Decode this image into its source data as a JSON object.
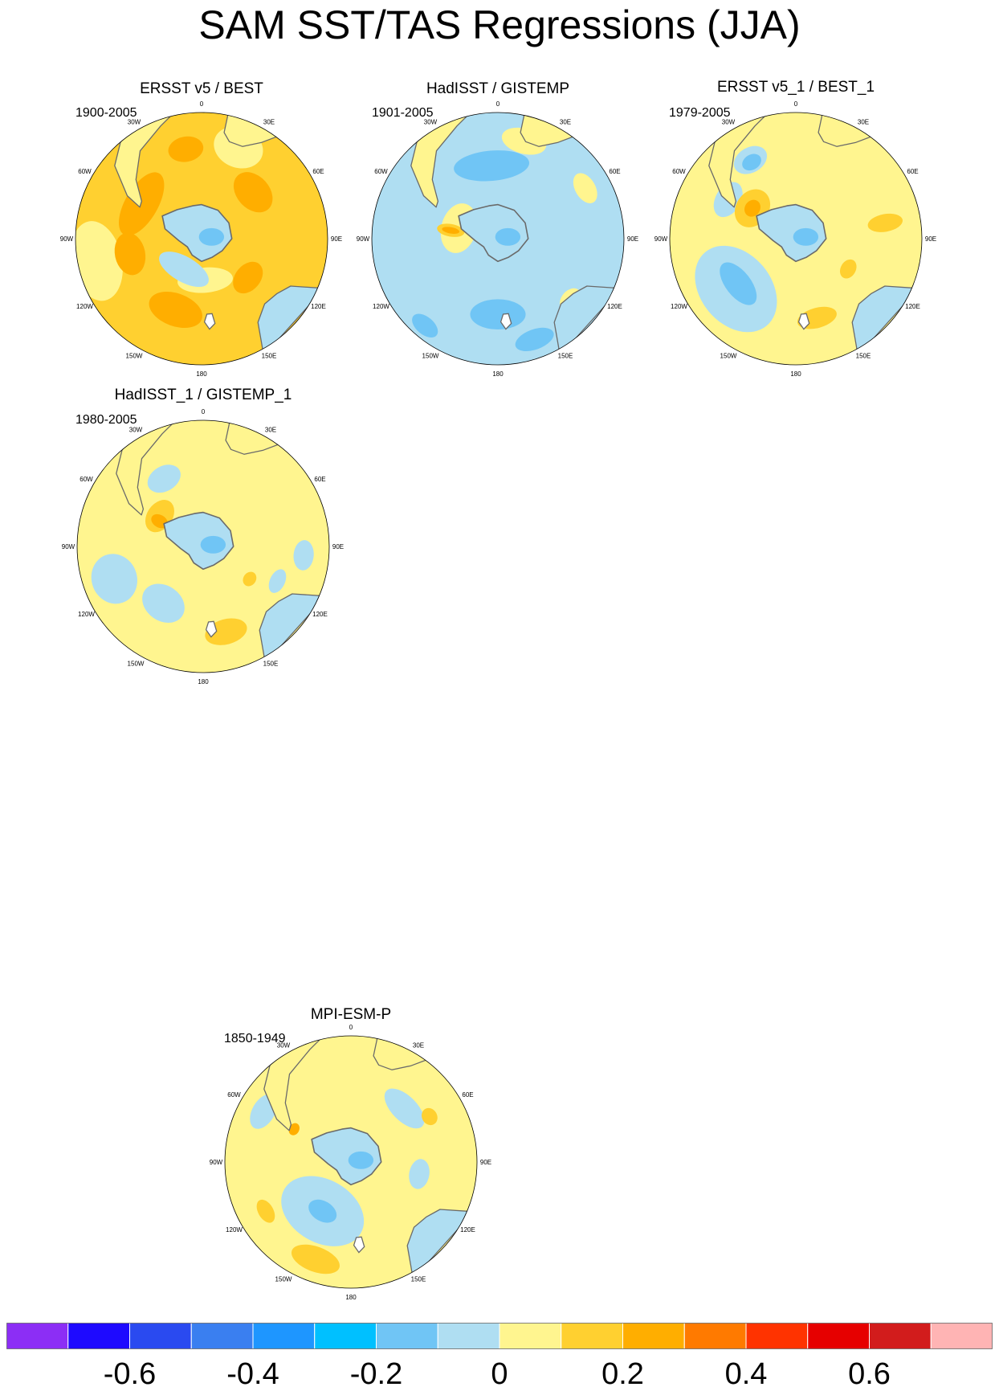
{
  "title": "SAM SST/TAS Regressions (JJA)",
  "lon_labels": [
    "0",
    "30E",
    "60E",
    "90E",
    "120E",
    "150E",
    "180",
    "150W",
    "120W",
    "90W",
    "60W",
    "30W"
  ],
  "panels": [
    {
      "title": "ERSST v5 / BEST",
      "period": "1900-2005",
      "fill": "#ffd030",
      "blobs": [
        {
          "color": "#fff58f",
          "angle": 258,
          "r": 0.85,
          "rx": 0.32,
          "ry": 0.2
        },
        {
          "color": "#fff58f",
          "angle": 22,
          "r": 0.78,
          "rx": 0.2,
          "ry": 0.16
        },
        {
          "color": "#ffae00",
          "angle": 300,
          "r": 0.55,
          "rx": 0.28,
          "ry": 0.13
        },
        {
          "color": "#ffae00",
          "angle": 48,
          "r": 0.55,
          "rx": 0.18,
          "ry": 0.13
        },
        {
          "color": "#ffae00",
          "angle": 258,
          "r": 0.58,
          "rx": 0.17,
          "ry": 0.12
        },
        {
          "color": "#ffae00",
          "angle": 200,
          "r": 0.6,
          "rx": 0.22,
          "ry": 0.13
        },
        {
          "color": "#ffae00",
          "angle": 130,
          "r": 0.48,
          "rx": 0.14,
          "ry": 0.1
        },
        {
          "color": "#ffae00",
          "angle": 350,
          "r": 0.72,
          "rx": 0.14,
          "ry": 0.1
        },
        {
          "color": "#fff58f",
          "angle": 175,
          "r": 0.33,
          "rx": 0.22,
          "ry": 0.1
        },
        {
          "color": "#afdef2",
          "angle": 210,
          "r": 0.28,
          "rx": 0.22,
          "ry": 0.1
        }
      ]
    },
    {
      "title": "HadISST / GISTEMP",
      "period": "1901-2005",
      "fill": "#afdef2",
      "blobs": [
        {
          "color": "#70c5f5",
          "angle": 355,
          "r": 0.58,
          "rx": 0.3,
          "ry": 0.12
        },
        {
          "color": "#70c5f5",
          "angle": 180,
          "r": 0.6,
          "rx": 0.22,
          "ry": 0.12
        },
        {
          "color": "#70c5f5",
          "angle": 160,
          "r": 0.85,
          "rx": 0.16,
          "ry": 0.08
        },
        {
          "color": "#70c5f5",
          "angle": 220,
          "r": 0.9,
          "rx": 0.12,
          "ry": 0.07
        },
        {
          "color": "#fff58f",
          "angle": 285,
          "r": 0.32,
          "rx": 0.2,
          "ry": 0.14
        },
        {
          "color": "#ffd030",
          "angle": 280,
          "r": 0.38,
          "rx": 0.05,
          "ry": 0.11
        },
        {
          "color": "#ffae00",
          "angle": 280,
          "r": 0.38,
          "rx": 0.025,
          "ry": 0.07
        },
        {
          "color": "#fff58f",
          "angle": 15,
          "r": 0.8,
          "rx": 0.18,
          "ry": 0.1
        },
        {
          "color": "#fff58f",
          "angle": 60,
          "r": 0.8,
          "rx": 0.13,
          "ry": 0.08
        },
        {
          "color": "#fff58f",
          "angle": 130,
          "r": 0.75,
          "rx": 0.1,
          "ry": 0.07
        }
      ]
    },
    {
      "title": "ERSST v5_1 / BEST_1",
      "period": "1979-2005",
      "fill": "#fff58f",
      "blobs": [
        {
          "color": "#afdef2",
          "angle": 230,
          "r": 0.62,
          "rx": 0.38,
          "ry": 0.28
        },
        {
          "color": "#70c5f5",
          "angle": 232,
          "r": 0.58,
          "rx": 0.2,
          "ry": 0.1
        },
        {
          "color": "#afdef2",
          "angle": 300,
          "r": 0.62,
          "rx": 0.15,
          "ry": 0.1
        },
        {
          "color": "#afdef2",
          "angle": 330,
          "r": 0.72,
          "rx": 0.14,
          "ry": 0.1
        },
        {
          "color": "#70c5f5",
          "angle": 330,
          "r": 0.7,
          "rx": 0.08,
          "ry": 0.06
        },
        {
          "color": "#ffd030",
          "angle": 305,
          "r": 0.42,
          "rx": 0.16,
          "ry": 0.13
        },
        {
          "color": "#ffae00",
          "angle": 305,
          "r": 0.42,
          "rx": 0.07,
          "ry": 0.06
        },
        {
          "color": "#ffd030",
          "angle": 80,
          "r": 0.72,
          "rx": 0.07,
          "ry": 0.14
        },
        {
          "color": "#ffd030",
          "angle": 165,
          "r": 0.65,
          "rx": 0.16,
          "ry": 0.08
        },
        {
          "color": "#ffd030",
          "angle": 120,
          "r": 0.48,
          "rx": 0.08,
          "ry": 0.06
        }
      ]
    },
    {
      "title": "HadISST_1 / GISTEMP_1",
      "period": "1980-2005",
      "fill": "#fff58f",
      "blobs": [
        {
          "color": "#afdef2",
          "angle": 250,
          "r": 0.75,
          "rx": 0.2,
          "ry": 0.18
        },
        {
          "color": "#afdef2",
          "angle": 215,
          "r": 0.55,
          "rx": 0.18,
          "ry": 0.14
        },
        {
          "color": "#afdef2",
          "angle": 330,
          "r": 0.62,
          "rx": 0.14,
          "ry": 0.1
        },
        {
          "color": "#afdef2",
          "angle": 95,
          "r": 0.8,
          "rx": 0.12,
          "ry": 0.08
        },
        {
          "color": "#afdef2",
          "angle": 115,
          "r": 0.65,
          "rx": 0.1,
          "ry": 0.06
        },
        {
          "color": "#ffd030",
          "angle": 305,
          "r": 0.42,
          "rx": 0.14,
          "ry": 0.1
        },
        {
          "color": "#ffae00",
          "angle": 300,
          "r": 0.4,
          "rx": 0.05,
          "ry": 0.07
        },
        {
          "color": "#ffd030",
          "angle": 165,
          "r": 0.7,
          "rx": 0.17,
          "ry": 0.1
        },
        {
          "color": "#ffd030",
          "angle": 125,
          "r": 0.45,
          "rx": 0.06,
          "ry": 0.05
        }
      ]
    },
    {
      "title": "MPI-ESM-P",
      "period": "1850-1949",
      "fill": "#fff58f",
      "blobs": [
        {
          "color": "#afdef2",
          "angle": 210,
          "r": 0.45,
          "rx": 0.35,
          "ry": 0.25
        },
        {
          "color": "#70c5f5",
          "angle": 210,
          "r": 0.45,
          "rx": 0.12,
          "ry": 0.08
        },
        {
          "color": "#afdef2",
          "angle": 300,
          "r": 0.8,
          "rx": 0.15,
          "ry": 0.09
        },
        {
          "color": "#afdef2",
          "angle": 45,
          "r": 0.6,
          "rx": 0.2,
          "ry": 0.1
        },
        {
          "color": "#afdef2",
          "angle": 100,
          "r": 0.55,
          "rx": 0.12,
          "ry": 0.08
        },
        {
          "color": "#ffd030",
          "angle": 200,
          "r": 0.82,
          "rx": 0.2,
          "ry": 0.1
        },
        {
          "color": "#ffd030",
          "angle": 60,
          "r": 0.72,
          "rx": 0.07,
          "ry": 0.06
        },
        {
          "color": "#ffae00",
          "angle": 300,
          "r": 0.52,
          "rx": 0.05,
          "ry": 0.04
        },
        {
          "color": "#ffd030",
          "angle": 240,
          "r": 0.78,
          "rx": 0.1,
          "ry": 0.06
        }
      ]
    }
  ],
  "colorbar": {
    "colors": [
      "#8c2ef5",
      "#1e0aff",
      "#2a4af0",
      "#3a7ff0",
      "#1e96ff",
      "#00c0ff",
      "#70c5f5",
      "#afdef2",
      "#fff58f",
      "#ffd030",
      "#ffae00",
      "#ff7a00",
      "#ff3300",
      "#e60000",
      "#d21c1c",
      "#ffb4b4"
    ],
    "labels": [
      "-0.6",
      "-0.4",
      "-0.2",
      "0",
      "0.2",
      "0.4",
      "0.6"
    ],
    "label_values": [
      -0.6,
      -0.4,
      -0.2,
      0,
      0.2,
      0.4,
      0.6
    ],
    "min": -0.8,
    "step": 0.1
  },
  "chart_data": {
    "type": "heatmap",
    "title": "SAM SST/TAS Regressions (JJA)",
    "projection": "south polar stereographic",
    "panels": [
      {
        "name": "ERSST v5 / BEST",
        "period": "1900-2005"
      },
      {
        "name": "HadISST / GISTEMP",
        "period": "1901-2005"
      },
      {
        "name": "ERSST v5_1 / BEST_1",
        "period": "1979-2005"
      },
      {
        "name": "HadISST_1 / GISTEMP_1",
        "period": "1980-2005"
      },
      {
        "name": "MPI-ESM-P",
        "period": "1850-1949"
      }
    ],
    "color_levels": [
      -0.7,
      -0.6,
      -0.5,
      -0.4,
      -0.3,
      -0.2,
      -0.1,
      0,
      0.1,
      0.2,
      0.3,
      0.4,
      0.5,
      0.6,
      0.7
    ],
    "colorbar_ticks": [
      -0.6,
      -0.4,
      -0.2,
      0,
      0.2,
      0.4,
      0.6
    ]
  }
}
